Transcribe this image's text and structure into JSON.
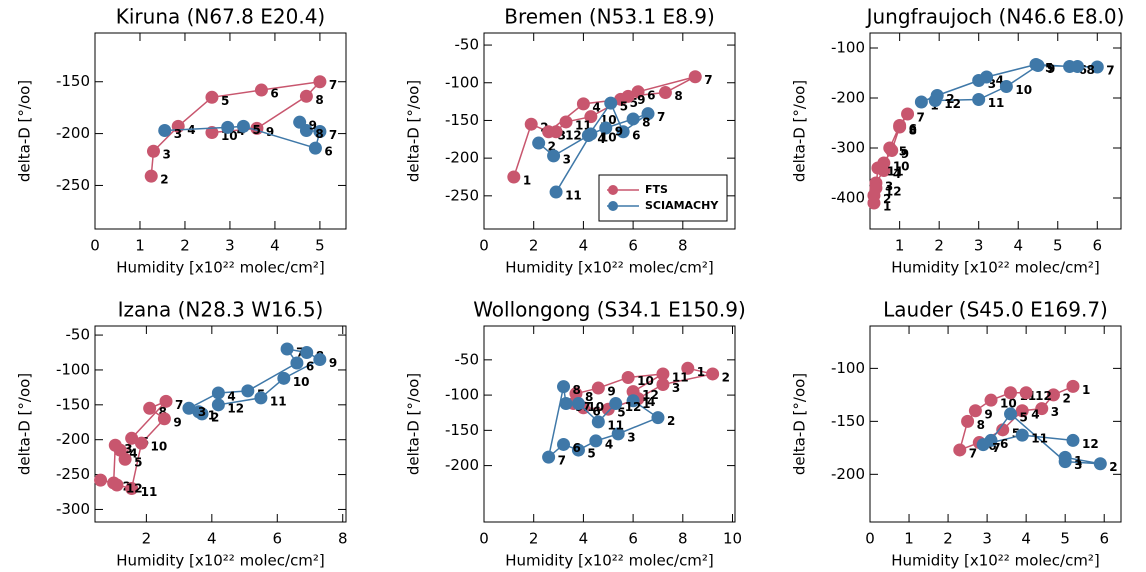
{
  "chart_data": [
    {
      "type": "scatter",
      "title": "Kiruna (N67.8 E20.4)",
      "x_label": "Humidity [x10²² molec/cm²]",
      "y_label": "delta-D [°/oo]",
      "xlim": [
        0,
        5.58
      ],
      "ylim": [
        -292,
        -103
      ],
      "xticks": [
        0,
        1,
        2,
        3,
        4,
        5
      ],
      "yticks": [
        -250,
        -200,
        -150
      ],
      "series": [
        {
          "color": "#c8566e",
          "labels": [
            "2",
            "3",
            "4",
            "5",
            "6",
            "7",
            "8",
            "9",
            "10"
          ],
          "x": [
            1.25,
            1.3,
            1.85,
            2.6,
            3.7,
            5.0,
            4.7,
            3.6,
            2.6
          ],
          "values": [
            -241,
            -217,
            -193,
            -165,
            -158,
            -150,
            -164,
            -195,
            -199
          ]
        },
        {
          "color": "#3f78a8",
          "labels": [
            "3",
            "4",
            "5",
            "6",
            "7",
            "8",
            "9"
          ],
          "x": [
            1.55,
            2.95,
            3.3,
            4.9,
            5.0,
            4.7,
            4.55
          ],
          "values": [
            -197,
            -194,
            -193,
            -214,
            -198,
            -197,
            -189
          ]
        }
      ]
    },
    {
      "type": "scatter",
      "title": "Bremen (N53.1 E8.9)",
      "x_label": "Humidity [x10²² molec/cm²]",
      "y_label": "delta-D [°/oo]",
      "xlim": [
        0,
        10.1
      ],
      "ylim": [
        -294,
        -34
      ],
      "xticks": [
        0,
        2,
        4,
        6,
        8
      ],
      "yticks": [
        -250,
        -200,
        -150,
        -100,
        -50
      ],
      "legend": "lower right",
      "series": [
        {
          "name": "FTS",
          "color": "#c8566e",
          "labels": [
            "1",
            "2",
            "3",
            "4",
            "5",
            "6",
            "7",
            "8",
            "9",
            "10",
            "11",
            "12"
          ],
          "x": [
            1.2,
            1.9,
            2.6,
            4.0,
            5.5,
            6.2,
            8.5,
            7.3,
            5.8,
            4.3,
            3.3,
            2.9
          ],
          "values": [
            -225,
            -155,
            -165,
            -128,
            -122,
            -112,
            -92,
            -113,
            -118,
            -145,
            -152,
            -165
          ]
        },
        {
          "name": "SCIAMACHY",
          "color": "#3f78a8",
          "labels": [
            "2",
            "3",
            "4",
            "5",
            "6",
            "7",
            "8",
            "9",
            "10",
            "11"
          ],
          "x": [
            2.2,
            2.8,
            4.2,
            5.1,
            5.6,
            6.6,
            6.0,
            4.9,
            4.3,
            2.9
          ],
          "values": [
            -180,
            -197,
            -170,
            -127,
            -165,
            -141,
            -148,
            -160,
            -168,
            -245
          ]
        }
      ]
    },
    {
      "type": "scatter",
      "title": "Jungfraujoch (N46.6 E8.0)",
      "x_label": "Humidity [x10²² molec/cm²]",
      "y_label": "delta-D [°/oo]",
      "xlim": [
        0.25,
        6.6
      ],
      "ylim": [
        -462,
        -70
      ],
      "xticks": [
        1,
        2,
        3,
        4,
        5,
        6
      ],
      "yticks": [
        -400,
        -300,
        -200,
        -100
      ],
      "series": [
        {
          "color": "#c8566e",
          "labels": [
            "1",
            "2",
            "3",
            "4",
            "5",
            "6",
            "7",
            "8",
            "9",
            "10",
            "11",
            "12"
          ],
          "x": [
            0.35,
            0.35,
            0.4,
            0.6,
            0.75,
            1.0,
            1.2,
            1.0,
            0.8,
            0.6,
            0.45,
            0.4
          ],
          "values": [
            -410,
            -395,
            -370,
            -345,
            -300,
            -255,
            -232,
            -258,
            -305,
            -330,
            -340,
            -380
          ]
        },
        {
          "color": "#3f78a8",
          "labels": [
            "1",
            "2",
            "3",
            "4",
            "5",
            "6",
            "7",
            "8",
            "9",
            "10",
            "11",
            "12"
          ],
          "x": [
            1.55,
            1.95,
            3.0,
            3.2,
            4.45,
            5.3,
            6.0,
            5.5,
            4.5,
            3.7,
            3.0,
            1.9
          ],
          "values": [
            -208,
            -195,
            -165,
            -158,
            -133,
            -137,
            -138,
            -137,
            -135,
            -177,
            -203,
            -205
          ]
        }
      ]
    },
    {
      "type": "scatter",
      "title": "Izana (N28.3 W16.5)",
      "x_label": "Humidity [x10²² molec/cm²]",
      "y_label": "delta-D [°/oo]",
      "xlim": [
        0.43,
        8.1
      ],
      "ylim": [
        -318,
        -37
      ],
      "xticks": [
        2,
        4,
        6,
        8
      ],
      "yticks": [
        -300,
        -250,
        -200,
        -150,
        -100,
        -50
      ],
      "series": [
        {
          "color": "#c8566e",
          "labels": [
            "1",
            "2",
            "3",
            "4",
            "5",
            "6",
            "7",
            "8",
            "9",
            "10",
            "11",
            "12"
          ],
          "x": [
            0.6,
            1.0,
            1.05,
            1.2,
            1.35,
            1.55,
            2.6,
            2.1,
            2.55,
            1.85,
            1.55,
            1.1
          ],
          "values": [
            -258,
            -262,
            -208,
            -215,
            -228,
            -198,
            -145,
            -155,
            -170,
            -205,
            -270,
            -265
          ]
        },
        {
          "color": "#3f78a8",
          "labels": [
            "1",
            "2",
            "3",
            "4",
            "5",
            "6",
            "7",
            "8",
            "9",
            "10",
            "11",
            "12"
          ],
          "x": [
            3.6,
            3.7,
            3.3,
            4.2,
            5.1,
            6.6,
            6.3,
            6.9,
            7.3,
            6.2,
            5.5,
            4.2
          ],
          "values": [
            -160,
            -163,
            -155,
            -133,
            -130,
            -90,
            -70,
            -75,
            -85,
            -112,
            -140,
            -150
          ]
        }
      ]
    },
    {
      "type": "scatter",
      "title": "Wollongong (S34.1 E150.9)",
      "x_label": "Humidity [x10²² molec/cm²]",
      "y_label": "delta-D [°/oo]",
      "xlim": [
        0,
        10.1
      ],
      "ylim": [
        -280,
        -2
      ],
      "xticks": [
        0,
        2,
        4,
        6,
        8,
        10
      ],
      "yticks": [
        -200,
        -150,
        -100,
        -50
      ],
      "series": [
        {
          "color": "#c8566e",
          "labels": [
            "1",
            "2",
            "3",
            "4",
            "5",
            "6",
            "7",
            "8",
            "9",
            "10",
            "11",
            "12"
          ],
          "x": [
            8.2,
            9.2,
            7.2,
            6.2,
            5.0,
            4.0,
            3.6,
            3.7,
            4.6,
            5.8,
            7.2,
            6.0
          ],
          "values": [
            -62,
            -70,
            -85,
            -105,
            -120,
            -118,
            -112,
            -98,
            -90,
            -75,
            -70,
            -95
          ]
        },
        {
          "color": "#3f78a8",
          "labels": [
            "1",
            "2",
            "3",
            "4",
            "5",
            "6",
            "7",
            "8",
            "9",
            "10",
            "11",
            "12"
          ],
          "x": [
            6.0,
            7.0,
            5.4,
            4.5,
            3.8,
            3.2,
            2.6,
            3.2,
            3.3,
            3.8,
            4.6,
            5.3
          ],
          "values": [
            -108,
            -132,
            -155,
            -165,
            -178,
            -170,
            -188,
            -88,
            -112,
            -112,
            -138,
            -112
          ]
        }
      ]
    },
    {
      "type": "scatter",
      "title": "Lauder (S45.0 E169.7)",
      "x_label": "Humidity [x10²² molec/cm²]",
      "y_label": "delta-D [°/oo]",
      "xlim": [
        0,
        6.43
      ],
      "ylim": [
        -245,
        -60
      ],
      "xticks": [
        0,
        1,
        2,
        3,
        4,
        5,
        6
      ],
      "yticks": [
        -200,
        -150,
        -100
      ],
      "series": [
        {
          "color": "#c8566e",
          "labels": [
            "1",
            "2",
            "3",
            "4",
            "5",
            "6",
            "7",
            "8",
            "9",
            "10",
            "11",
            "12"
          ],
          "x": [
            5.2,
            4.7,
            4.4,
            3.9,
            3.4,
            2.8,
            2.3,
            2.5,
            2.7,
            3.1,
            3.6,
            4.0
          ],
          "values": [
            -117,
            -125,
            -138,
            -140,
            -158,
            -170,
            -177,
            -150,
            -140,
            -130,
            -123,
            -123
          ]
        },
        {
          "color": "#3f78a8",
          "labels": [
            "1",
            "2",
            "3",
            "5",
            "6",
            "7",
            "11",
            "12"
          ],
          "x": [
            5.0,
            5.9,
            5.0,
            3.6,
            3.1,
            2.9,
            3.9,
            5.2
          ],
          "values": [
            -184,
            -190,
            -188,
            -143,
            -168,
            -172,
            -163,
            -168
          ]
        }
      ]
    }
  ]
}
